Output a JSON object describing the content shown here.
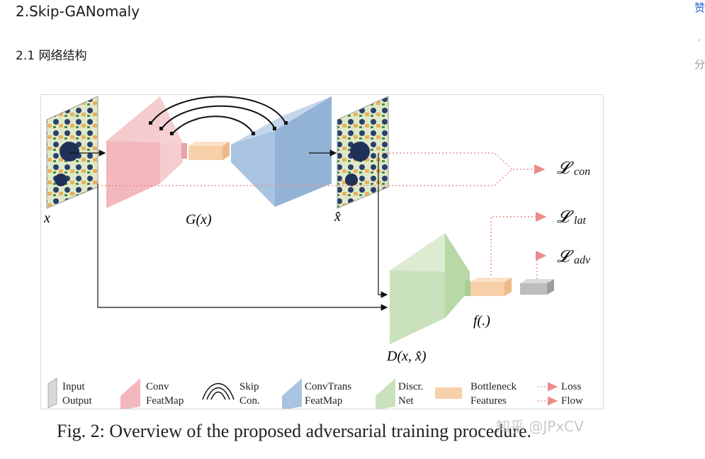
{
  "heading": "2.Skip-GANomaly",
  "subheading": "2.1 网络结构",
  "sidebar": {
    "top": "赞",
    "mid": "·",
    "bottom": "分"
  },
  "figure": {
    "labels": {
      "x": "x",
      "x_hat": "x̂",
      "gx": "G(x)",
      "dx": "D(x, x̂)",
      "f": "f(.)"
    },
    "losses": {
      "con_main": "𝓛",
      "con_sub": "con",
      "lat_main": "𝓛",
      "lat_sub": "lat",
      "adv_main": "𝓛",
      "adv_sub": "adv"
    },
    "legend": {
      "input": [
        "Input",
        "Output"
      ],
      "conv": [
        "Conv",
        "FeatMap"
      ],
      "skip": [
        "Skip",
        "Con."
      ],
      "convtrans": [
        "ConvTrans",
        "FeatMap"
      ],
      "discr": [
        "Discr.",
        "Net"
      ],
      "bottleneck": [
        "Bottleneck",
        "Features"
      ],
      "loss": [
        "Loss",
        "Flow"
      ]
    },
    "caption": "Fig. 2: Overview of the proposed adversarial training procedure.",
    "watermark": "知乎 @JPxCV",
    "colors": {
      "conv": "#f2b8bd",
      "convtrans": "#a9c4e0",
      "discr": "#c9e2bd",
      "bottleneck": "#f7cfa8",
      "latent_gray": "#bdbdbd",
      "loss_arrow": "#e98a8a"
    }
  }
}
